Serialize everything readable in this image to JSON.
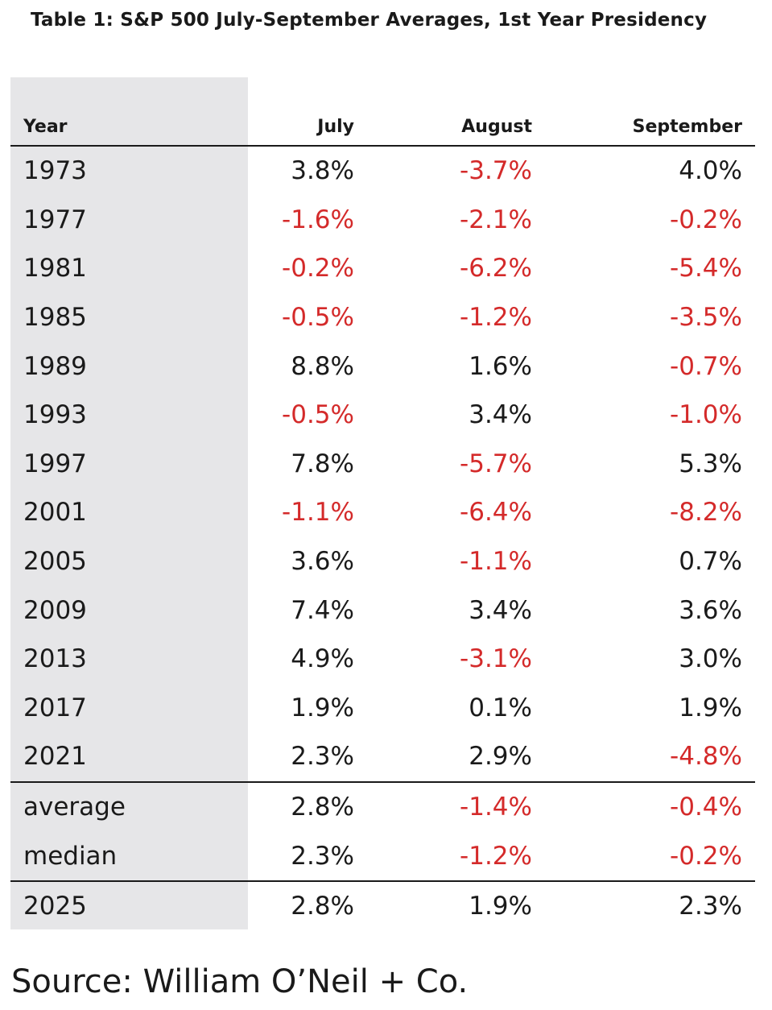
{
  "title": "Table 1: S&P 500 July-September Averages, 1st Year Presidency",
  "columns": [
    "Year",
    "July",
    "August",
    "September"
  ],
  "rows": [
    {
      "year": "1973",
      "july": "3.8%",
      "august": "-3.7%",
      "september": "4.0%"
    },
    {
      "year": "1977",
      "july": "-1.6%",
      "august": "-2.1%",
      "september": "-0.2%"
    },
    {
      "year": "1981",
      "july": "-0.2%",
      "august": "-6.2%",
      "september": "-5.4%"
    },
    {
      "year": "1985",
      "july": "-0.5%",
      "august": "-1.2%",
      "september": "-3.5%"
    },
    {
      "year": "1989",
      "july": "8.8%",
      "august": "1.6%",
      "september": "-0.7%"
    },
    {
      "year": "1993",
      "july": "-0.5%",
      "august": "3.4%",
      "september": "-1.0%"
    },
    {
      "year": "1997",
      "july": "7.8%",
      "august": "-5.7%",
      "september": "5.3%"
    },
    {
      "year": "2001",
      "july": "-1.1%",
      "august": "-6.4%",
      "september": "-8.2%"
    },
    {
      "year": "2005",
      "july": "3.6%",
      "august": "-1.1%",
      "september": "0.7%"
    },
    {
      "year": "2009",
      "july": "7.4%",
      "august": "3.4%",
      "september": "3.6%"
    },
    {
      "year": "2013",
      "july": "4.9%",
      "august": "-3.1%",
      "september": "3.0%"
    },
    {
      "year": "2017",
      "july": "1.9%",
      "august": "0.1%",
      "september": "1.9%"
    },
    {
      "year": "2021",
      "july": "2.3%",
      "august": "2.9%",
      "september": "-4.8%"
    }
  ],
  "summary": [
    {
      "year": "average",
      "july": "2.8%",
      "august": "-1.4%",
      "september": "-0.4%"
    },
    {
      "year": "median",
      "july": "2.3%",
      "august": "-1.2%",
      "september": "-0.2%"
    }
  ],
  "current": [
    {
      "year": "2025",
      "july": "2.8%",
      "august": "1.9%",
      "september": "2.3%"
    }
  ],
  "negative_color": "#d42a2a",
  "source": "Source: William O’Neil + Co."
}
